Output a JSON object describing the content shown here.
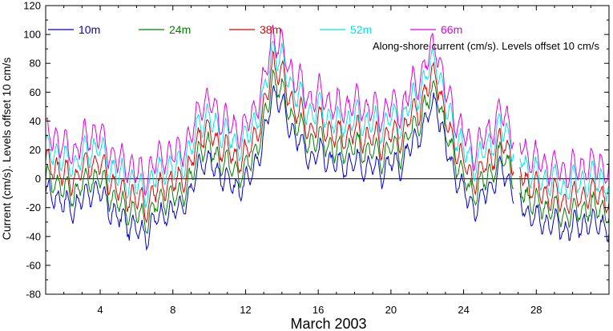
{
  "chart_data": {
    "type": "line",
    "title": "",
    "xlabel": "March 2003",
    "ylabel": "Current (cm/s). Levels offset 10 cm/s",
    "annotation": "Along-shore current (cm/s). Levels offset 10 cm/s",
    "xlim": [
      1,
      32
    ],
    "ylim": [
      -80,
      120
    ],
    "x_ticks": [
      4,
      8,
      12,
      16,
      20,
      24,
      28
    ],
    "y_ticks": [
      -80,
      -60,
      -40,
      -20,
      0,
      20,
      40,
      60,
      80,
      100,
      120
    ],
    "zero_line": true,
    "grid": false,
    "legend_position": "top",
    "gap": [
      26.8,
      27.1
    ],
    "series": [
      {
        "name": "10m",
        "color": "#0000cc",
        "offset": 0
      },
      {
        "name": "24m",
        "color": "#007f00",
        "offset": 10
      },
      {
        "name": "38m",
        "color": "#e00000",
        "offset": 20
      },
      {
        "name": "52m",
        "color": "#00e5e5",
        "offset": 30
      },
      {
        "name": "66m",
        "color": "#e000e0",
        "offset": 40
      }
    ],
    "base_current": {
      "x": [
        1.0,
        1.5,
        2.0,
        2.5,
        3.0,
        3.5,
        4.0,
        4.5,
        5.0,
        5.5,
        6.0,
        6.5,
        7.0,
        7.5,
        8.0,
        8.5,
        9.0,
        9.5,
        10.0,
        10.5,
        11.0,
        11.5,
        12.0,
        12.5,
        13.0,
        13.5,
        14.0,
        14.5,
        15.0,
        15.5,
        16.0,
        16.5,
        17.0,
        17.5,
        18.0,
        18.5,
        19.0,
        19.5,
        20.0,
        20.5,
        21.0,
        21.5,
        22.0,
        22.5,
        23.0,
        23.5,
        24.0,
        24.5,
        25.0,
        25.5,
        26.0,
        26.5,
        26.8,
        27.1,
        27.5,
        28.0,
        28.5,
        29.0,
        29.5,
        30.0,
        30.5,
        31.0,
        31.5,
        32.0
      ],
      "y": [
        -12,
        -10,
        -18,
        -20,
        -15,
        -8,
        -10,
        -20,
        -28,
        -30,
        -35,
        -38,
        -30,
        -22,
        -25,
        -18,
        -12,
        14,
        10,
        5,
        -2,
        -5,
        -5,
        10,
        25,
        62,
        50,
        35,
        25,
        15,
        18,
        15,
        8,
        10,
        12,
        10,
        8,
        5,
        12,
        8,
        20,
        30,
        42,
        55,
        20,
        5,
        -10,
        -20,
        -15,
        -5,
        5,
        0,
        -8,
        -15,
        -22,
        -28,
        -30,
        -32,
        -35,
        -34,
        -30,
        -32,
        -28,
        -38
      ]
    }
  }
}
